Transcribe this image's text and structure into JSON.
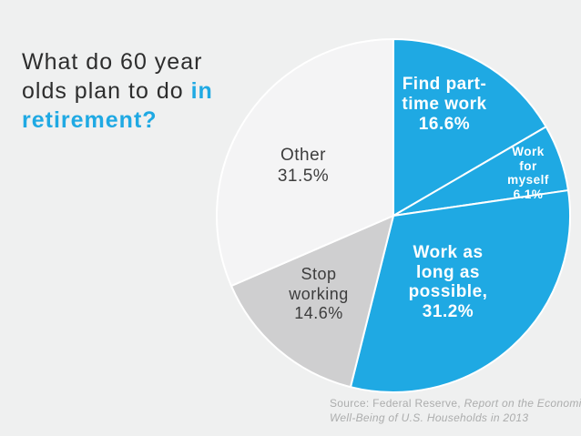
{
  "slide": {
    "background_color": "#EFF0F0",
    "accent_color": "#1FA9E3",
    "title": {
      "line1": "What do 60 year",
      "line2_dark": "olds plan to do ",
      "line2_accent": "in",
      "line3_accent": "retirement?"
    },
    "source": {
      "line1_normal": "Source: Federal Reserve, ",
      "line1_italic": "Report on the Economic",
      "line2_italic": "Well-Being of U.S. Households in 2013"
    }
  },
  "chart_data": {
    "type": "pie",
    "title": "What do 60 year olds plan to do in retirement?",
    "start_angle_deg": 0,
    "direction": "clockwise",
    "legend_position": "none",
    "total": 100.0,
    "segments": [
      {
        "label": "Find part-time work",
        "value": 16.6,
        "color": "#1FA9E3",
        "text_color": "#FFFFFF",
        "display": "Find part-\ntime work\n16.6%"
      },
      {
        "label": "Work for myself",
        "value": 6.1,
        "color": "#1FA9E3",
        "text_color": "#FFFFFF",
        "display": "Work for\nmyself\n6.1%"
      },
      {
        "label": "Work as long as possible",
        "value": 31.2,
        "color": "#1FA9E3",
        "text_color": "#FFFFFF",
        "display": "Work as\nlong as\npossible,\n31.2%"
      },
      {
        "label": "Stop working",
        "value": 14.6,
        "color": "#CFCFD0",
        "text_color": "#3D3D3D",
        "display": "Stop\nworking\n14.6%"
      },
      {
        "label": "Other",
        "value": 31.5,
        "color": "#F4F4F5",
        "text_color": "#3D3D3D",
        "display": "Other\n31.5%"
      }
    ]
  }
}
